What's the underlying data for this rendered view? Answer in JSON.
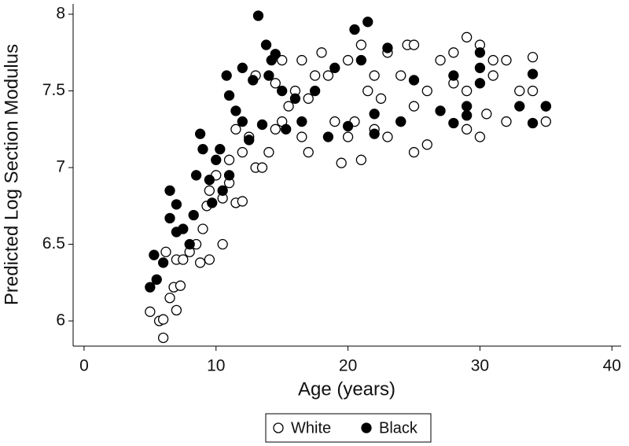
{
  "chart_data": {
    "type": "scatter",
    "xlabel": "Age (years)",
    "ylabel": "Predicted Log Section Modulus",
    "xlim": [
      -0.83,
      40.7
    ],
    "ylim": [
      5.836,
      8.067
    ],
    "xticks": [
      0,
      10,
      20,
      30,
      40
    ],
    "yticks": [
      6,
      6.5,
      7,
      7.5,
      8
    ],
    "grid": false,
    "legend": "bottom",
    "series": [
      {
        "name": "White",
        "color": "#ffffff",
        "edgecolor": "#000000",
        "x": [
          5,
          5.7,
          6,
          6,
          6.5,
          6.8,
          7,
          7.3,
          6.2,
          7,
          7.5,
          8,
          8.5,
          9,
          9.5,
          8.8,
          10.5,
          9.3,
          9.5,
          10,
          10.5,
          11,
          11.5,
          12,
          11,
          11.5,
          12,
          12.5,
          13,
          13.5,
          14,
          14.5,
          15,
          15.5,
          16,
          16.5,
          17,
          17,
          17.5,
          18,
          18.5,
          19,
          19.5,
          20,
          20,
          20.5,
          21,
          21,
          21.5,
          22,
          22,
          22.5,
          23,
          23,
          24,
          24,
          24.5,
          25,
          25,
          25,
          26,
          26,
          27,
          28,
          28,
          29,
          29,
          29,
          30,
          30,
          30.5,
          31,
          31,
          32,
          32,
          33,
          34,
          34,
          35,
          35,
          14.5,
          15,
          16.5,
          13
        ],
        "values": [
          6.06,
          6.0,
          5.89,
          6.01,
          6.15,
          6.22,
          6.07,
          6.23,
          6.45,
          6.4,
          6.4,
          6.45,
          6.5,
          6.6,
          6.4,
          6.38,
          6.5,
          6.75,
          6.85,
          6.95,
          6.8,
          6.9,
          6.77,
          6.78,
          7.05,
          7.25,
          7.1,
          7.2,
          7.0,
          7.0,
          7.1,
          7.25,
          7.3,
          7.4,
          7.5,
          7.2,
          7.1,
          7.45,
          7.6,
          7.75,
          7.6,
          7.3,
          7.03,
          7.2,
          7.7,
          7.3,
          7.8,
          7.05,
          7.5,
          7.25,
          7.6,
          7.45,
          7.2,
          7.75,
          7.3,
          7.6,
          7.8,
          7.1,
          7.4,
          7.8,
          7.15,
          7.5,
          7.7,
          7.55,
          7.75,
          7.25,
          7.5,
          7.85,
          7.2,
          7.8,
          7.35,
          7.6,
          7.7,
          7.3,
          7.7,
          7.5,
          7.5,
          7.72,
          7.3,
          7.4,
          7.55,
          7.7,
          7.7,
          7.6
        ]
      },
      {
        "name": "Black",
        "color": "#000000",
        "edgecolor": "#000000",
        "x": [
          5,
          5.3,
          5.5,
          6,
          6.5,
          6.5,
          7,
          7,
          7.5,
          8,
          8.3,
          8.5,
          8.8,
          9,
          9.5,
          9.7,
          10,
          10.3,
          10.5,
          10.8,
          11,
          11,
          11.5,
          12,
          12,
          12.5,
          12.8,
          13.2,
          13.5,
          13.8,
          14,
          14.2,
          14.5,
          15,
          15.3,
          16,
          16.5,
          17.5,
          18.5,
          19,
          20,
          20.5,
          21,
          21.5,
          22,
          22,
          23,
          24,
          25,
          27,
          28,
          28,
          29,
          29,
          30,
          30,
          30,
          33,
          34,
          34,
          35
        ],
        "values": [
          6.22,
          6.43,
          6.27,
          6.38,
          6.67,
          6.85,
          6.58,
          6.76,
          6.6,
          6.5,
          6.69,
          6.95,
          7.22,
          7.12,
          6.92,
          6.77,
          7.05,
          7.12,
          6.85,
          7.6,
          7.47,
          6.95,
          7.37,
          7.65,
          7.3,
          7.18,
          7.57,
          7.99,
          7.28,
          7.8,
          7.6,
          7.7,
          7.74,
          7.5,
          7.25,
          7.45,
          7.3,
          7.5,
          7.2,
          7.65,
          7.27,
          7.9,
          7.7,
          7.95,
          7.35,
          7.22,
          7.78,
          7.3,
          7.57,
          7.37,
          7.29,
          7.6,
          7.4,
          7.34,
          7.65,
          7.55,
          7.75,
          7.4,
          7.61,
          7.29,
          7.4
        ]
      }
    ]
  }
}
